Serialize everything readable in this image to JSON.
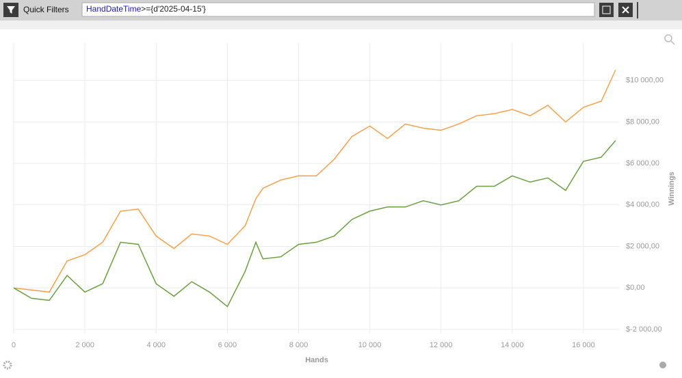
{
  "ui": {
    "toolbar": {
      "label": "Quick Filters",
      "filter_field": "HandDateTime",
      "filter_rest": ">={d'2025-04-15'}"
    }
  },
  "chart_data": {
    "type": "line",
    "x_label": "Hands",
    "y_label": "Winnings",
    "x": [
      0,
      500,
      1000,
      1500,
      2000,
      2500,
      3000,
      3500,
      4000,
      4500,
      5000,
      5500,
      6000,
      6500,
      6800,
      7000,
      7500,
      8000,
      8500,
      9000,
      9500,
      10000,
      10500,
      11000,
      11500,
      12000,
      12500,
      13000,
      13500,
      14000,
      14500,
      15000,
      15500,
      16000,
      16500,
      16900
    ],
    "series": [
      {
        "color": "#f5a04a",
        "values": [
          0,
          -100,
          -200,
          1300,
          1600,
          2200,
          3700,
          3800,
          2500,
          1900,
          2600,
          2500,
          2100,
          3000,
          4300,
          4800,
          5200,
          5400,
          5400,
          6200,
          7300,
          7800,
          7200,
          7900,
          7700,
          7600,
          7900,
          8300,
          8400,
          8600,
          8300,
          8800,
          8000,
          8700,
          9000,
          10500
        ]
      },
      {
        "color": "#6a9e3f",
        "values": [
          0,
          -500,
          -600,
          600,
          -200,
          200,
          2200,
          2100,
          200,
          -400,
          300,
          -200,
          -900,
          800,
          2200,
          1400,
          1500,
          2100,
          2200,
          2500,
          3300,
          3700,
          3900,
          3900,
          4200,
          4000,
          4200,
          4900,
          4900,
          5400,
          5100,
          5300,
          4700,
          6100,
          6300,
          7100
        ]
      }
    ],
    "xlim": [
      0,
      17000
    ],
    "xticks": [
      0,
      {
        "value": 2000,
        "label": "2 000"
      },
      {
        "value": 4000,
        "label": "4 000"
      },
      {
        "value": 6000,
        "label": "6 000"
      },
      {
        "value": 8000,
        "label": "8 000"
      },
      {
        "value": 10000,
        "label": "10 000"
      },
      {
        "value": 12000,
        "label": "12 000"
      },
      {
        "value": 14000,
        "label": "14 000"
      },
      {
        "value": 16000,
        "label": "16 000"
      }
    ],
    "ylim": [
      -2200,
      11800
    ],
    "yticks": [
      {
        "value": -2000,
        "label": "$-2 000,00"
      },
      {
        "value": 0,
        "label": "$0,00"
      },
      {
        "value": 2000,
        "label": "$2 000,00"
      },
      {
        "value": 4000,
        "label": "$4 000,00"
      },
      {
        "value": 6000,
        "label": "$6 000,00"
      },
      {
        "value": 8000,
        "label": "$8 000,00"
      },
      {
        "value": 10000,
        "label": "$10 000,00"
      }
    ],
    "grid": true
  }
}
